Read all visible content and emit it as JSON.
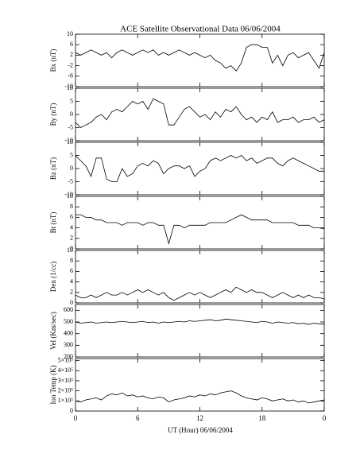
{
  "chart_data": {
    "type": "line",
    "title": "ACE Satellite Observational Data   06/06/2004",
    "x_label": "UT (Hour)   06/06/2004",
    "xlim": [
      0,
      24
    ],
    "xticks": [
      0,
      6,
      12,
      18,
      {
        "value": 24,
        "label": "0"
      }
    ],
    "x": [
      0,
      0.5,
      1,
      1.5,
      2,
      2.5,
      3,
      3.5,
      4,
      4.5,
      5,
      5.5,
      6,
      6.5,
      7,
      7.5,
      8,
      8.5,
      9,
      9.5,
      10,
      10.5,
      11,
      11.5,
      12,
      12.5,
      13,
      13.5,
      14,
      14.5,
      15,
      15.5,
      16,
      16.5,
      17,
      17.5,
      18,
      18.5,
      19,
      19.5,
      20,
      20.5,
      21,
      21.5,
      22,
      22.5,
      23,
      23.5,
      24
    ],
    "panels": [
      {
        "y_label": "Bx (nT)",
        "ylim": [
          -10,
          10
        ],
        "yticks": [
          10,
          6,
          2,
          -2,
          -6,
          -10
        ],
        "values": [
          3,
          2,
          3,
          4,
          3,
          2,
          3,
          1,
          3,
          4,
          3,
          2,
          3,
          4,
          3,
          4,
          2,
          3,
          2,
          3,
          4,
          3,
          2,
          3,
          2,
          1,
          2,
          0,
          -1,
          -3,
          -2,
          -4,
          -1,
          5,
          6,
          6,
          5,
          5,
          -1,
          2,
          -2,
          2,
          3,
          1,
          2,
          3,
          0,
          -3,
          3
        ]
      },
      {
        "y_label": "By (nT)",
        "ylim": [
          -10,
          10
        ],
        "yticks": [
          10,
          5,
          0,
          -5,
          -10
        ],
        "values": [
          -3,
          -5,
          -4,
          -3,
          -1,
          0,
          -2,
          1,
          2,
          1,
          3,
          5,
          4,
          5,
          2,
          6,
          5,
          4,
          -4,
          -4,
          -1,
          2,
          3,
          1,
          -1,
          0,
          -2,
          1,
          -1,
          2,
          1,
          3,
          0,
          -2,
          -1,
          -3,
          -1,
          -2,
          1,
          -3,
          -2,
          -2,
          -1,
          -3,
          -2,
          -2,
          -1,
          -3,
          -2
        ]
      },
      {
        "y_label": "Bz (nT)",
        "ylim": [
          -10,
          10
        ],
        "yticks": [
          10,
          5,
          0,
          -5,
          -10
        ],
        "values": [
          5,
          3,
          1,
          -3,
          4,
          4,
          -4,
          -5,
          -5,
          0,
          -3,
          -2,
          1,
          2,
          1,
          3,
          2,
          -2,
          0,
          1,
          1,
          0,
          1,
          -3,
          -1,
          0,
          3,
          4,
          3,
          4,
          5,
          4,
          5,
          3,
          4,
          2,
          3,
          4,
          4,
          2,
          1,
          3,
          4,
          3,
          2,
          1,
          0,
          -1,
          -1
        ]
      },
      {
        "y_label": "Bt (nT)",
        "ylim": [
          0,
          10
        ],
        "yticks": [
          10,
          8,
          6,
          4,
          2,
          0
        ],
        "values": [
          6.5,
          6.5,
          6,
          6,
          5.5,
          5.5,
          5,
          5,
          5,
          4.5,
          5,
          5,
          5,
          4.5,
          5,
          5,
          4.5,
          4.5,
          1,
          4.5,
          4.5,
          4,
          4.5,
          4.5,
          4.5,
          4.5,
          5,
          5,
          5,
          5,
          5.5,
          6,
          6.5,
          6,
          5.5,
          5.5,
          5.5,
          5.5,
          5,
          5,
          5,
          5,
          5,
          4.5,
          4.5,
          4.5,
          4,
          4,
          3.8
        ]
      },
      {
        "y_label": "Den (1/cc)",
        "ylim": [
          0,
          10
        ],
        "yticks": [
          10,
          8,
          6,
          4,
          2,
          0
        ],
        "values": [
          1.5,
          1,
          1,
          1.5,
          1,
          1.5,
          2,
          1.5,
          1.5,
          2,
          1.5,
          2,
          2.5,
          2,
          2.5,
          2,
          1.5,
          2,
          1,
          0.5,
          1,
          1.5,
          2,
          1.5,
          2,
          1.5,
          1,
          1.5,
          2,
          2.5,
          2,
          3,
          2.5,
          2,
          2.5,
          2,
          2,
          1.5,
          1,
          1.5,
          2,
          1.5,
          1,
          1.5,
          1,
          1.5,
          1,
          1,
          0.8
        ]
      },
      {
        "y_label": "Vel (Km/sec)",
        "ylim": [
          200,
          650
        ],
        "yticks": [
          600,
          500,
          400,
          300,
          200
        ],
        "values": [
          500,
          490,
          495,
          500,
          490,
          495,
          500,
          495,
          500,
          505,
          500,
          495,
          500,
          505,
          495,
          500,
          490,
          500,
          495,
          500,
          505,
          500,
          510,
          505,
          510,
          515,
          520,
          510,
          515,
          525,
          520,
          515,
          510,
          505,
          500,
          495,
          505,
          500,
          490,
          500,
          495,
          490,
          495,
          485,
          490,
          480,
          490,
          485,
          480
        ]
      },
      {
        "y_label": "Ion Temp (K)",
        "ylim": [
          0,
          520000
        ],
        "yticks": [
          {
            "value": 500000,
            "label": "5×10⁵"
          },
          {
            "value": 400000,
            "label": "4×10⁵"
          },
          {
            "value": 300000,
            "label": "3×10⁵"
          },
          {
            "value": 200000,
            "label": "2×10⁵"
          },
          {
            "value": 100000,
            "label": "1×10⁵"
          },
          0
        ],
        "values": [
          100000,
          90000,
          110000,
          120000,
          130000,
          110000,
          150000,
          170000,
          160000,
          180000,
          150000,
          160000,
          140000,
          150000,
          130000,
          120000,
          140000,
          130000,
          90000,
          110000,
          120000,
          130000,
          150000,
          140000,
          160000,
          150000,
          170000,
          160000,
          180000,
          190000,
          200000,
          180000,
          150000,
          130000,
          120000,
          110000,
          130000,
          120000,
          100000,
          110000,
          120000,
          100000,
          110000,
          90000,
          100000,
          80000,
          90000,
          100000,
          110000
        ]
      }
    ]
  }
}
